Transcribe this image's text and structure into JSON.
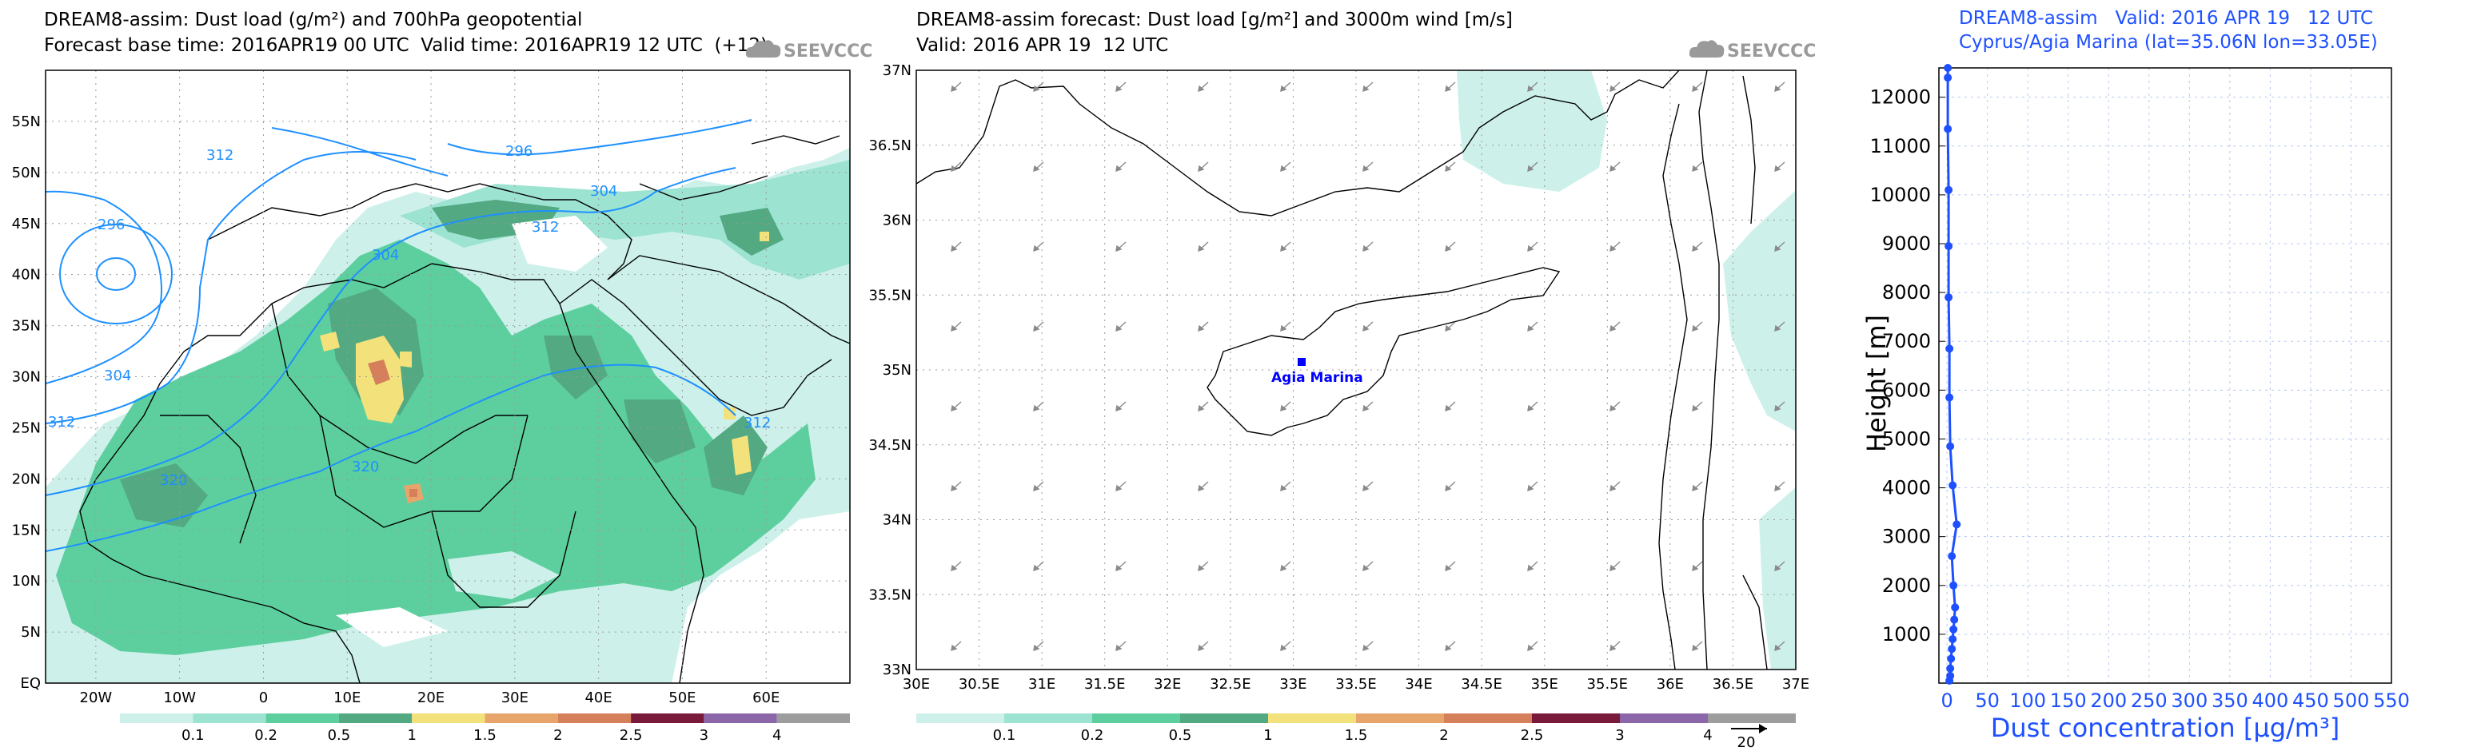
{
  "panels": {
    "left": {
      "title1": "DREAM8-assim: Dust load (g/m²) and 700hPa geopotential",
      "title2": "Forecast base time: 2016APR19 00 UTC  Valid time: 2016APR19 12 UTC  (+12)",
      "logo_text": "SEEVCCC",
      "lat_ticks": [
        "55N",
        "50N",
        "45N",
        "40N",
        "35N",
        "30N",
        "25N",
        "20N",
        "15N",
        "10N",
        "5N",
        "EQ"
      ],
      "lon_ticks": [
        "20W",
        "10W",
        "0",
        "10E",
        "20E",
        "30E",
        "40E",
        "50E",
        "60E"
      ],
      "contour_labels": [
        "312",
        "296",
        "304",
        "296",
        "304",
        "312",
        "304",
        "312",
        "320",
        "320",
        "312"
      ],
      "colorbar": {
        "labels": [
          "0.1",
          "0.2",
          "0.5",
          "1",
          "1.5",
          "2",
          "2.5",
          "3",
          "4"
        ],
        "colors": [
          "#cdf1ea",
          "#9de3d2",
          "#5dcf9e",
          "#52a982",
          "#f3e27b",
          "#e8a56b",
          "#d5805a",
          "#7a1a3a",
          "#8b66a8",
          "#9d9d9d"
        ]
      }
    },
    "middle": {
      "title1": "DREAM8-assim forecast: Dust load [g/m²] and 3000m wind [m/s]",
      "title2": "Valid: 2016 APR 19  12 UTC",
      "logo_text": "SEEVCCC",
      "lat_ticks": [
        "37N",
        "36.5N",
        "36N",
        "35.5N",
        "35N",
        "34.5N",
        "34N",
        "33.5N",
        "33N"
      ],
      "lon_ticks": [
        "30E",
        "30.5E",
        "31E",
        "31.5E",
        "32E",
        "32.5E",
        "33E",
        "33.5E",
        "34E",
        "34.5E",
        "35E",
        "35.5E",
        "36E",
        "36.5E",
        "37E"
      ],
      "station_label": "Agia Marina",
      "colorbar_labels": [
        "0.1",
        "0.2",
        "0.5",
        "1",
        "1.5",
        "2",
        "2.5",
        "3",
        "4"
      ],
      "wind_ref": "20"
    },
    "right": {
      "title1": "DREAM8-assim   Valid: 2016 APR 19   12 UTC",
      "title2": "Cyprus/Agia Marina (lat=35.06N lon=33.05E)"
    }
  },
  "chart_data": [
    {
      "type": "map",
      "title": "DREAM8-assim: Dust load (g/m²) and 700hPa geopotential",
      "subtitle": "Forecast base time: 2016APR19 00 UTC  Valid time: 2016APR19 12 UTC  (+12)",
      "xlim": [
        -26,
        70
      ],
      "ylim": [
        0,
        60
      ],
      "legend_position": "bottom colorbar"
    },
    {
      "type": "map",
      "title": "DREAM8-assim forecast: Dust load [g/m²] and 3000m wind [m/s]",
      "subtitle": "Valid: 2016 APR 19  12 UTC",
      "xlim": [
        30,
        37
      ],
      "ylim": [
        33,
        37
      ],
      "legend_position": "bottom colorbar"
    },
    {
      "type": "line",
      "title": "DREAM8-assim   Valid: 2016 APR 19   12 UTC",
      "subtitle": "Cyprus/Agia Marina (lat=35.06N lon=33.05E)",
      "xlabel": "Dust concentration [µg/m³]",
      "ylabel": "Height [m]",
      "xlim": [
        -10,
        550
      ],
      "ylim": [
        0,
        12600
      ],
      "xticks": [
        "0",
        "50",
        "100",
        "150",
        "200",
        "250",
        "300",
        "350",
        "400",
        "450",
        "500",
        "550"
      ],
      "yticks": [
        "1000",
        "2000",
        "3000",
        "4000",
        "5000",
        "6000",
        "7000",
        "8000",
        "9000",
        "10000",
        "11000",
        "12000"
      ],
      "grid": true,
      "series": [
        {
          "x": [
            3,
            4,
            4,
            5,
            6,
            7,
            8,
            9,
            10,
            8,
            6,
            12,
            7,
            4,
            3,
            3,
            2,
            2,
            2,
            1,
            1,
            1
          ],
          "y": [
            50,
            150,
            300,
            500,
            700,
            900,
            1100,
            1300,
            1550,
            2000,
            2600,
            3250,
            4050,
            4850,
            5850,
            6850,
            7900,
            8950,
            10100,
            11350,
            12400,
            12600
          ]
        }
      ]
    }
  ]
}
